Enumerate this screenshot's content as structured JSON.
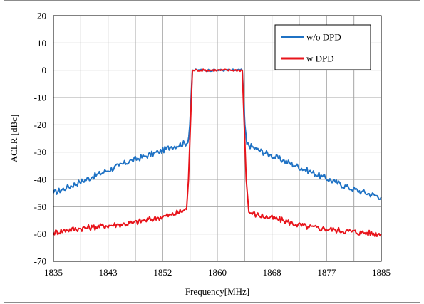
{
  "chart_data": {
    "type": "line",
    "title": "",
    "xlabel": "Frequency[MHz]",
    "ylabel": "ACLR [dBc]",
    "xlim": [
      1835,
      1885
    ],
    "ylim": [
      -70,
      20
    ],
    "x_tick_labels": [
      "1835",
      "1843",
      "1852",
      "1860",
      "1868",
      "1877",
      "1885"
    ],
    "y_tick_labels": [
      "20",
      "10",
      "0",
      "-10",
      "-20",
      "-30",
      "-40",
      "-50",
      "-60",
      "-70"
    ],
    "grid": true,
    "legend_position": "top-right",
    "series": [
      {
        "name": "w/o DPD",
        "color": "#1f72c4",
        "x": [
          1835,
          1837,
          1839,
          1841,
          1843,
          1845,
          1847,
          1849,
          1851,
          1853,
          1855.5,
          1855.8,
          1856.2,
          1858,
          1860,
          1862,
          1863.8,
          1864.2,
          1864.5,
          1866,
          1868,
          1870,
          1872,
          1874,
          1876,
          1878,
          1880,
          1882,
          1885
        ],
        "y": [
          -45,
          -43,
          -41,
          -39,
          -37,
          -35,
          -33,
          -31.5,
          -30,
          -28,
          -26.5,
          -20,
          0,
          0,
          0,
          0,
          0,
          -20,
          -27,
          -29,
          -31,
          -33,
          -35,
          -37,
          -39,
          -41,
          -43,
          -44.5,
          -46.5
        ]
      },
      {
        "name": "w DPD",
        "color": "#e8141b",
        "x": [
          1835,
          1837,
          1839,
          1841,
          1843,
          1845,
          1847,
          1849,
          1851,
          1853,
          1855.3,
          1855.6,
          1856.2,
          1858,
          1860,
          1862,
          1863.8,
          1864.4,
          1864.8,
          1866,
          1868,
          1870,
          1872,
          1874,
          1876,
          1878,
          1880,
          1882,
          1885
        ],
        "y": [
          -59.5,
          -58.5,
          -58,
          -57.5,
          -57,
          -56.5,
          -56,
          -55,
          -54,
          -53,
          -51,
          -40,
          0,
          0,
          0,
          0,
          0,
          -40,
          -52,
          -53,
          -54,
          -55,
          -56.5,
          -57.5,
          -58,
          -58.5,
          -59,
          -59.5,
          -60
        ]
      }
    ]
  }
}
